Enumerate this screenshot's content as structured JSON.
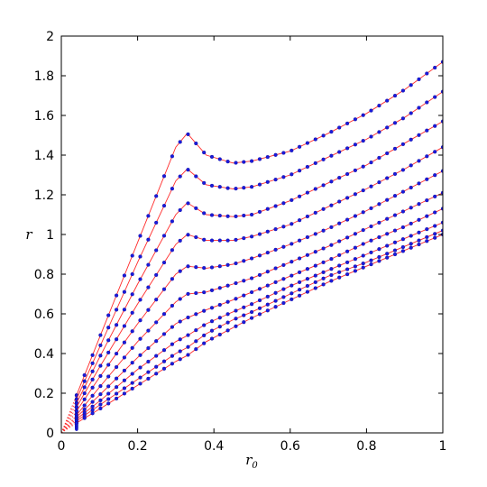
{
  "chart_data": {
    "type": "scatter",
    "title": "",
    "xlabel": "r",
    "xlabel_sub": "0",
    "ylabel": "r",
    "xlim": [
      0,
      1
    ],
    "ylim": [
      0,
      2
    ],
    "x_ticks": [
      "0",
      "0.2",
      "0.4",
      "0.6",
      "0.8",
      "1"
    ],
    "y_ticks": [
      "0",
      "0.2",
      "0.4",
      "0.6",
      "0.8",
      "1",
      "1.2",
      "1.4",
      "1.6",
      "1.8",
      "2"
    ],
    "grid": false,
    "legend": "none",
    "colors": {
      "markers": "#1a1adb",
      "lines": "#ff2a2a"
    },
    "series": [
      {
        "x": [
          0.04,
          0.1,
          0.2,
          0.3,
          0.33,
          0.38,
          0.45,
          0.5,
          0.6,
          0.7,
          0.8,
          0.9,
          1.0
        ],
        "y": [
          0.19,
          0.48,
          0.96,
          1.44,
          1.51,
          1.4,
          1.36,
          1.37,
          1.42,
          1.51,
          1.61,
          1.73,
          1.87
        ]
      },
      {
        "x": [
          0.04,
          0.1,
          0.2,
          0.3,
          0.33,
          0.38,
          0.45,
          0.5,
          0.6,
          0.7,
          0.8,
          0.9,
          1.0
        ],
        "y": [
          0.17,
          0.43,
          0.86,
          1.27,
          1.33,
          1.25,
          1.23,
          1.24,
          1.3,
          1.39,
          1.48,
          1.59,
          1.72
        ]
      },
      {
        "x": [
          0.04,
          0.1,
          0.2,
          0.3,
          0.33,
          0.38,
          0.45,
          0.5,
          0.6,
          0.7,
          0.8,
          0.9,
          1.0
        ],
        "y": [
          0.15,
          0.38,
          0.75,
          1.1,
          1.16,
          1.1,
          1.09,
          1.1,
          1.17,
          1.26,
          1.35,
          1.46,
          1.57
        ]
      },
      {
        "x": [
          0.04,
          0.1,
          0.2,
          0.3,
          0.33,
          0.38,
          0.45,
          0.5,
          0.6,
          0.7,
          0.8,
          0.9,
          1.0
        ],
        "y": [
          0.13,
          0.33,
          0.65,
          0.95,
          1.0,
          0.97,
          0.97,
          0.99,
          1.05,
          1.14,
          1.23,
          1.33,
          1.44
        ]
      },
      {
        "x": [
          0.04,
          0.1,
          0.2,
          0.3,
          0.33,
          0.38,
          0.45,
          0.5,
          0.6,
          0.7,
          0.8,
          0.9,
          1.0
        ],
        "y": [
          0.11,
          0.28,
          0.55,
          0.8,
          0.84,
          0.83,
          0.85,
          0.88,
          0.95,
          1.03,
          1.12,
          1.22,
          1.32
        ]
      },
      {
        "x": [
          0.04,
          0.1,
          0.2,
          0.3,
          0.33,
          0.38,
          0.45,
          0.5,
          0.6,
          0.7,
          0.8,
          0.9,
          1.0
        ],
        "y": [
          0.09,
          0.23,
          0.46,
          0.66,
          0.7,
          0.71,
          0.75,
          0.78,
          0.86,
          0.94,
          1.03,
          1.12,
          1.21
        ]
      },
      {
        "x": [
          0.04,
          0.1,
          0.2,
          0.3,
          0.33,
          0.38,
          0.45,
          0.5,
          0.6,
          0.7,
          0.8,
          0.9,
          1.0
        ],
        "y": [
          0.08,
          0.19,
          0.38,
          0.55,
          0.58,
          0.62,
          0.67,
          0.71,
          0.79,
          0.87,
          0.96,
          1.04,
          1.13
        ]
      },
      {
        "x": [
          0.04,
          0.1,
          0.2,
          0.3,
          0.33,
          0.38,
          0.45,
          0.5,
          0.6,
          0.7,
          0.8,
          0.9,
          1.0
        ],
        "y": [
          0.07,
          0.16,
          0.32,
          0.46,
          0.49,
          0.55,
          0.61,
          0.65,
          0.74,
          0.82,
          0.9,
          0.98,
          1.06
        ]
      },
      {
        "x": [
          0.04,
          0.1,
          0.2,
          0.3,
          0.33,
          0.38,
          0.45,
          0.5,
          0.6,
          0.7,
          0.8,
          0.9,
          1.0
        ],
        "y": [
          0.06,
          0.14,
          0.27,
          0.4,
          0.43,
          0.5,
          0.57,
          0.61,
          0.7,
          0.79,
          0.86,
          0.94,
          1.02
        ]
      },
      {
        "x": [
          0.04,
          0.1,
          0.2,
          0.3,
          0.33,
          0.38,
          0.45,
          0.5,
          0.6,
          0.7,
          0.8,
          0.9,
          1.0
        ],
        "y": [
          0.05,
          0.12,
          0.24,
          0.36,
          0.39,
          0.46,
          0.53,
          0.58,
          0.67,
          0.76,
          0.84,
          0.92,
          1.0
        ]
      }
    ]
  }
}
